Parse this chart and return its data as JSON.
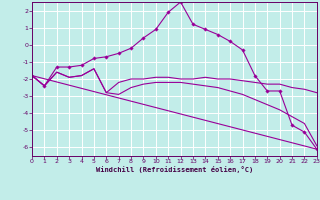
{
  "xlabel": "Windchill (Refroidissement éolien,°C)",
  "background_color": "#c2ede9",
  "grid_color": "#ffffff",
  "line_color": "#990099",
  "xlim": [
    0,
    23
  ],
  "ylim": [
    -6.5,
    2.5
  ],
  "xticks": [
    0,
    1,
    2,
    3,
    4,
    5,
    6,
    7,
    8,
    9,
    10,
    11,
    12,
    13,
    14,
    15,
    16,
    17,
    18,
    19,
    20,
    21,
    22,
    23
  ],
  "yticks": [
    -6,
    -5,
    -4,
    -3,
    -2,
    -1,
    0,
    1,
    2
  ],
  "series_jagged_x": [
    0,
    1,
    2,
    3,
    4,
    5,
    6,
    7,
    8,
    9,
    10,
    11,
    12,
    13,
    14,
    15,
    16,
    17,
    18,
    19,
    20,
    21,
    22,
    23
  ],
  "series_jagged_y": [
    -1.8,
    -2.4,
    -1.3,
    -1.3,
    -1.2,
    -0.8,
    -0.7,
    -0.5,
    -0.2,
    0.4,
    0.9,
    1.9,
    2.5,
    1.2,
    0.9,
    0.6,
    0.2,
    -0.3,
    -1.8,
    -2.7,
    -2.7,
    -4.7,
    -5.1,
    -6.1
  ],
  "series_flat_x": [
    0,
    1,
    2,
    3,
    4,
    5,
    6,
    7,
    8,
    9,
    10,
    11,
    12,
    13,
    14,
    15,
    16,
    17,
    18,
    19,
    20,
    21,
    22,
    23
  ],
  "series_flat_y": [
    -1.8,
    -2.4,
    -1.6,
    -1.9,
    -1.8,
    -1.4,
    -2.8,
    -2.2,
    -2.0,
    -2.0,
    -1.9,
    -1.9,
    -2.0,
    -2.0,
    -1.9,
    -2.0,
    -2.0,
    -2.1,
    -2.2,
    -2.3,
    -2.3,
    -2.5,
    -2.6,
    -2.8
  ],
  "series_mid_x": [
    0,
    1,
    2,
    3,
    4,
    5,
    6,
    7,
    8,
    9,
    10,
    11,
    12,
    13,
    14,
    15,
    16,
    17,
    18,
    19,
    20,
    21,
    22,
    23
  ],
  "series_mid_y": [
    -1.8,
    -2.4,
    -1.6,
    -1.9,
    -1.8,
    -1.4,
    -2.8,
    -2.9,
    -2.5,
    -2.3,
    -2.2,
    -2.2,
    -2.2,
    -2.3,
    -2.4,
    -2.5,
    -2.7,
    -2.9,
    -3.2,
    -3.5,
    -3.8,
    -4.2,
    -4.6,
    -5.9
  ],
  "trend_x": [
    0,
    23
  ],
  "trend_y": [
    -1.8,
    -6.1
  ]
}
